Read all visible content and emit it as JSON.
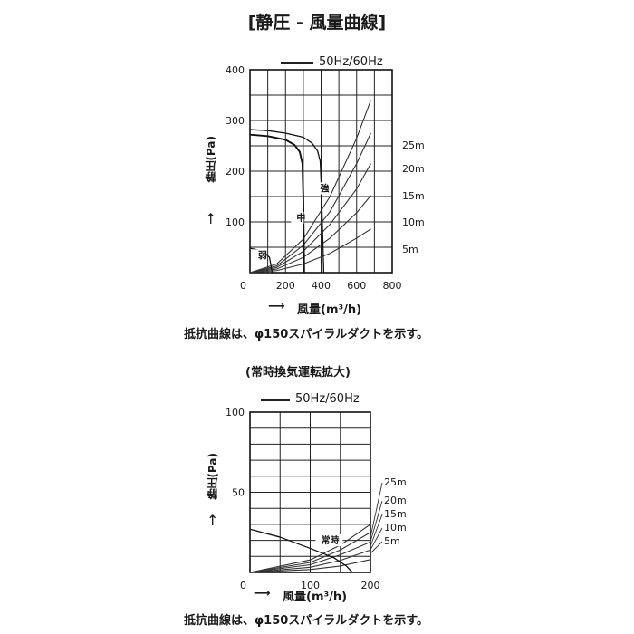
{
  "title": "[静圧 - 風量曲線]",
  "note": "抵抗曲線は、φ150スパイラルダクトを示す。",
  "chart_data": [
    {
      "type": "line",
      "legend": "50Hz/60Hz",
      "xlabel": "風量(m³/h)",
      "ylabel": "静圧(Pa)",
      "xlim": [
        0,
        800
      ],
      "ylim": [
        0,
        400
      ],
      "xticks": [
        "0",
        "200",
        "400",
        "600",
        "800"
      ],
      "yticks": [
        "100",
        "200",
        "300",
        "400"
      ],
      "grid": true,
      "fan_curves": [
        {
          "name": "強",
          "x": [
            0,
            100,
            200,
            300,
            350,
            380,
            395,
            400,
            410,
            415
          ],
          "y": [
            282,
            280,
            275,
            267,
            255,
            240,
            220,
            180,
            60,
            0
          ]
        },
        {
          "name": "中",
          "x": [
            0,
            100,
            200,
            250,
            280,
            295,
            300,
            305
          ],
          "y": [
            272,
            269,
            262,
            252,
            238,
            215,
            150,
            0
          ]
        },
        {
          "name": "弱",
          "x": [
            0,
            40,
            80,
            110,
            125
          ],
          "y": [
            48,
            45,
            40,
            30,
            0
          ]
        }
      ],
      "resistance_curves": [
        {
          "name": "25m",
          "points": [
            [
              0,
              0
            ],
            [
              150,
              17
            ],
            [
              300,
              66
            ],
            [
              450,
              150
            ],
            [
              600,
              265
            ],
            [
              680,
              340
            ]
          ]
        },
        {
          "name": "20m",
          "points": [
            [
              0,
              0
            ],
            [
              150,
              13
            ],
            [
              300,
              54
            ],
            [
              450,
              120
            ],
            [
              600,
              215
            ],
            [
              680,
              275
            ]
          ]
        },
        {
          "name": "15m",
          "points": [
            [
              0,
              0
            ],
            [
              150,
              10
            ],
            [
              300,
              42
            ],
            [
              450,
              95
            ],
            [
              600,
              165
            ],
            [
              680,
              215
            ]
          ]
        },
        {
          "name": "10m",
          "points": [
            [
              0,
              0
            ],
            [
              150,
              7
            ],
            [
              300,
              30
            ],
            [
              450,
              68
            ],
            [
              600,
              118
            ],
            [
              680,
              152
            ]
          ]
        },
        {
          "name": "5m",
          "points": [
            [
              0,
              0
            ],
            [
              150,
              4
            ],
            [
              300,
              17
            ],
            [
              450,
              38
            ],
            [
              600,
              68
            ],
            [
              680,
              86
            ]
          ]
        }
      ]
    },
    {
      "type": "line",
      "subtitle": "(常時換気運転拡大)",
      "legend": "50Hz/60Hz",
      "xlabel": "風量(m³/h)",
      "ylabel": "静圧(Pa)",
      "xlim": [
        0,
        200
      ],
      "ylim": [
        0,
        100
      ],
      "xticks": [
        "0",
        "100",
        "200"
      ],
      "yticks": [
        "50",
        "100"
      ],
      "grid": true,
      "fan_curves": [
        {
          "name": "常時",
          "x": [
            0,
            50,
            100,
            140,
            160,
            170
          ],
          "y": [
            27,
            22,
            15,
            9,
            4,
            0
          ]
        }
      ],
      "resistance_curves": [
        {
          "name": "25m",
          "points": [
            [
              0,
              0
            ],
            [
              100,
              7.8
            ],
            [
              150,
              17
            ],
            [
              200,
              30
            ]
          ]
        },
        {
          "name": "20m",
          "points": [
            [
              0,
              0
            ],
            [
              100,
              6.2
            ],
            [
              150,
              14
            ],
            [
              200,
              25
            ]
          ]
        },
        {
          "name": "15m",
          "points": [
            [
              0,
              0
            ],
            [
              100,
              4.8
            ],
            [
              150,
              11
            ],
            [
              200,
              19
            ]
          ]
        },
        {
          "name": "10m",
          "points": [
            [
              0,
              0
            ],
            [
              100,
              3.2
            ],
            [
              150,
              7.5
            ],
            [
              200,
              14
            ]
          ]
        },
        {
          "name": "5m",
          "points": [
            [
              0,
              0
            ],
            [
              100,
              1.8
            ],
            [
              150,
              4
            ],
            [
              200,
              8
            ]
          ]
        }
      ]
    }
  ]
}
